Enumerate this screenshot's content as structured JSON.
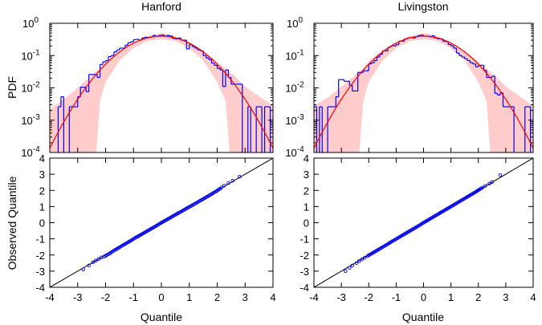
{
  "chart_data": [
    {
      "type": "line",
      "panel": "pdf",
      "title": "Hanford",
      "ylabel": "PDF",
      "xlim": [
        -4,
        4
      ],
      "ylim": [
        0.0001,
        1
      ],
      "yscale": "log",
      "x_ticks": [
        -4,
        -3,
        -2,
        -1,
        0,
        1,
        2,
        3,
        4
      ],
      "y_tick_labels": [
        {
          "base": "10",
          "exp": "0"
        },
        {
          "base": "10",
          "exp": "-1"
        },
        {
          "base": "10",
          "exp": "-2"
        },
        {
          "base": "10",
          "exp": "-3"
        },
        {
          "base": "10",
          "exp": "-4"
        }
      ],
      "histogram": {
        "color": "#0000ff",
        "bin_start": -4.0,
        "bin_width": 0.1,
        "values": [
          0,
          0,
          0,
          0.0026,
          0.0053,
          0,
          0,
          0.0026,
          0.0026,
          0.0026,
          0.0053,
          0.0105,
          0.0105,
          0.0076,
          0.026,
          0.026,
          0.026,
          0.021,
          0.053,
          0.064,
          0.07,
          0.093,
          0.1,
          0.13,
          0.15,
          0.17,
          0.17,
          0.21,
          0.25,
          0.27,
          0.31,
          0.32,
          0.3,
          0.35,
          0.37,
          0.36,
          0.38,
          0.42,
          0.39,
          0.42,
          0.43,
          0.4,
          0.42,
          0.4,
          0.34,
          0.33,
          0.35,
          0.3,
          0.3,
          0.16,
          0.22,
          0.19,
          0.17,
          0.15,
          0.14,
          0.1,
          0.085,
          0.075,
          0.058,
          0.05,
          0.04,
          0.036,
          0.011,
          0.036,
          0.021,
          0.013,
          0.013,
          0.013,
          0.013,
          0,
          0,
          0.0026,
          0,
          0,
          0.0026,
          0.0026,
          0,
          0.0026,
          0.0026,
          0
        ]
      },
      "fit_curve": {
        "color": "#ff0000",
        "model": "standard normal"
      },
      "band": {
        "color": "#ffcccc",
        "x": [
          -4,
          -3.5,
          -3,
          -2.5,
          -2.34,
          -2.2,
          -2,
          -1.5,
          -1,
          -0.5,
          0,
          0.5,
          1,
          1.5,
          2,
          2.3,
          2.45,
          2.6,
          3,
          3.5,
          4
        ],
        "upper": [
          0.0021,
          0.0045,
          0.01,
          0.025,
          0.032,
          0.04,
          0.065,
          0.14,
          0.26,
          0.4,
          0.5,
          0.4,
          0.26,
          0.14,
          0.065,
          0.038,
          0.03,
          0.025,
          0.011,
          0.0055,
          0.0028
        ],
        "lower": [
          0.0001,
          0.0001,
          0.0001,
          0.0001,
          0.0001,
          0.004,
          0.015,
          0.07,
          0.17,
          0.28,
          0.32,
          0.28,
          0.17,
          0.07,
          0.015,
          0.004,
          0.0001,
          0.0001,
          0.0001,
          0.0001,
          0.0001
        ]
      }
    },
    {
      "type": "line",
      "panel": "pdf",
      "title": "Livingston",
      "xlim": [
        -4,
        4
      ],
      "ylim": [
        0.0001,
        1
      ],
      "yscale": "log",
      "x_ticks": [
        -4,
        -3,
        -2,
        -1,
        0,
        1,
        2,
        3,
        4
      ],
      "y_tick_labels": [
        {
          "base": "10",
          "exp": "0"
        },
        {
          "base": "10",
          "exp": "-1"
        },
        {
          "base": "10",
          "exp": "-2"
        },
        {
          "base": "10",
          "exp": "-3"
        },
        {
          "base": "10",
          "exp": "-4"
        }
      ],
      "histogram": {
        "color": "#0000ff",
        "bin_start": -4.0,
        "bin_width": 0.1,
        "values": [
          0.0026,
          0,
          0.0026,
          0,
          0,
          0.0026,
          0.0026,
          0.0026,
          0.0053,
          0.018,
          0.018,
          0.016,
          0.016,
          0.012,
          0.008,
          0.008,
          0.03,
          0.03,
          0.034,
          0.034,
          0.055,
          0.06,
          0.07,
          0.09,
          0.11,
          0.14,
          0.14,
          0.18,
          0.2,
          0.2,
          0.22,
          0.28,
          0.28,
          0.33,
          0.35,
          0.36,
          0.35,
          0.38,
          0.42,
          0.43,
          0.4,
          0.4,
          0.38,
          0.41,
          0.35,
          0.33,
          0.33,
          0.28,
          0.27,
          0.22,
          0.2,
          0.17,
          0.12,
          0.1,
          0.09,
          0.08,
          0.07,
          0.06,
          0.055,
          0.045,
          0.05,
          0.05,
          0.035,
          0.021,
          0.021,
          0.023,
          0.0068,
          0.006,
          0.007,
          0.0026,
          0.0026,
          0.0026,
          0.0026,
          0,
          0,
          0,
          0,
          0.0026,
          0.0026,
          0
        ]
      },
      "fit_curve": {
        "color": "#ff0000",
        "model": "standard normal"
      },
      "band": {
        "color": "#ffcccc",
        "x": [
          -4,
          -3.5,
          -3,
          -2.5,
          -2.35,
          -2.2,
          -2,
          -1.5,
          -1,
          -0.5,
          0,
          0.5,
          1,
          1.5,
          2,
          2.3,
          2.44,
          2.6,
          3,
          3.5,
          4
        ],
        "upper": [
          0.0028,
          0.005,
          0.011,
          0.025,
          0.032,
          0.04,
          0.065,
          0.14,
          0.26,
          0.4,
          0.5,
          0.4,
          0.26,
          0.14,
          0.065,
          0.038,
          0.03,
          0.025,
          0.011,
          0.0055,
          0.0028
        ],
        "lower": [
          0.0001,
          0.0001,
          0.0001,
          0.0001,
          0.0001,
          0.004,
          0.015,
          0.07,
          0.17,
          0.28,
          0.32,
          0.28,
          0.17,
          0.07,
          0.015,
          0.004,
          0.0001,
          0.0001,
          0.0001,
          0.0001,
          0.0001
        ]
      }
    },
    {
      "type": "scatter",
      "panel": "qq",
      "xlabel": "Quantile",
      "ylabel": "Observed Quantile",
      "xlim": [
        -4,
        4
      ],
      "ylim": [
        -4,
        4
      ],
      "x_ticks": [
        -4,
        -3,
        -2,
        -1,
        0,
        1,
        2,
        3,
        4
      ],
      "y_ticks": [
        -4,
        -3,
        -2,
        -1,
        0,
        1,
        2,
        3,
        4
      ],
      "reference_line": {
        "color": "#000000",
        "from": [
          -4,
          -4
        ],
        "to": [
          4,
          4
        ]
      },
      "points": {
        "color": "#0000ff",
        "theoretical": [
          -2.8,
          -2.6,
          -2.45,
          -2.35,
          -2.25,
          -2.15,
          -2.05,
          -1.95,
          -1.85,
          -1.75,
          -1.65,
          -1.55,
          -1.45,
          -1.35,
          -1.25,
          -1.15,
          -1.05,
          -0.95,
          -0.85,
          -0.75,
          -0.65,
          -0.55,
          -0.45,
          -0.35,
          -0.25,
          -0.15,
          -0.05,
          0.05,
          0.15,
          0.25,
          0.35,
          0.45,
          0.55,
          0.65,
          0.75,
          0.85,
          0.95,
          1.05,
          1.15,
          1.25,
          1.35,
          1.45,
          1.55,
          1.65,
          1.75,
          1.85,
          1.95,
          2.05,
          2.15,
          2.25,
          2.4,
          2.55,
          2.8
        ],
        "observed": [
          -2.9,
          -2.65,
          -2.45,
          -2.35,
          -2.25,
          -2.15,
          -2.1,
          -2.0,
          -1.9,
          -1.78,
          -1.68,
          -1.58,
          -1.47,
          -1.37,
          -1.27,
          -1.17,
          -1.06,
          -0.95,
          -0.86,
          -0.76,
          -0.66,
          -0.56,
          -0.46,
          -0.36,
          -0.26,
          -0.16,
          -0.05,
          0.05,
          0.14,
          0.24,
          0.34,
          0.44,
          0.54,
          0.63,
          0.73,
          0.83,
          0.93,
          1.02,
          1.12,
          1.22,
          1.32,
          1.42,
          1.52,
          1.62,
          1.72,
          1.83,
          1.93,
          2.05,
          2.18,
          2.3,
          2.45,
          2.6,
          2.85
        ]
      }
    },
    {
      "type": "scatter",
      "panel": "qq",
      "xlabel": "Quantile",
      "xlim": [
        -4,
        4
      ],
      "ylim": [
        -4,
        4
      ],
      "x_ticks": [
        -4,
        -3,
        -2,
        -1,
        0,
        1,
        2,
        3,
        4
      ],
      "y_ticks": [
        -4,
        -3,
        -2,
        -1,
        0,
        1,
        2,
        3,
        4
      ],
      "reference_line": {
        "color": "#000000",
        "from": [
          -4,
          -4
        ],
        "to": [
          4,
          4
        ]
      },
      "points": {
        "color": "#0000ff",
        "theoretical": [
          -2.85,
          -2.7,
          -2.6,
          -2.45,
          -2.35,
          -2.25,
          -2.15,
          -2.05,
          -1.95,
          -1.85,
          -1.75,
          -1.65,
          -1.55,
          -1.45,
          -1.35,
          -1.25,
          -1.15,
          -1.05,
          -0.95,
          -0.85,
          -0.75,
          -0.65,
          -0.55,
          -0.45,
          -0.35,
          -0.25,
          -0.15,
          -0.05,
          0.05,
          0.15,
          0.25,
          0.35,
          0.45,
          0.55,
          0.65,
          0.75,
          0.85,
          0.95,
          1.05,
          1.15,
          1.25,
          1.35,
          1.45,
          1.55,
          1.65,
          1.75,
          1.85,
          1.95,
          2.05,
          2.15,
          2.25,
          2.4,
          2.5,
          2.8
        ],
        "observed": [
          -3.0,
          -2.8,
          -2.65,
          -2.5,
          -2.38,
          -2.27,
          -2.17,
          -2.07,
          -1.97,
          -1.87,
          -1.77,
          -1.67,
          -1.57,
          -1.47,
          -1.37,
          -1.26,
          -1.16,
          -1.06,
          -0.96,
          -0.86,
          -0.76,
          -0.66,
          -0.56,
          -0.46,
          -0.36,
          -0.26,
          -0.16,
          -0.05,
          0.05,
          0.15,
          0.25,
          0.35,
          0.45,
          0.55,
          0.65,
          0.75,
          0.85,
          0.95,
          1.05,
          1.15,
          1.25,
          1.35,
          1.45,
          1.55,
          1.65,
          1.75,
          1.85,
          1.96,
          2.07,
          2.17,
          2.28,
          2.42,
          2.52,
          2.95
        ]
      }
    }
  ]
}
